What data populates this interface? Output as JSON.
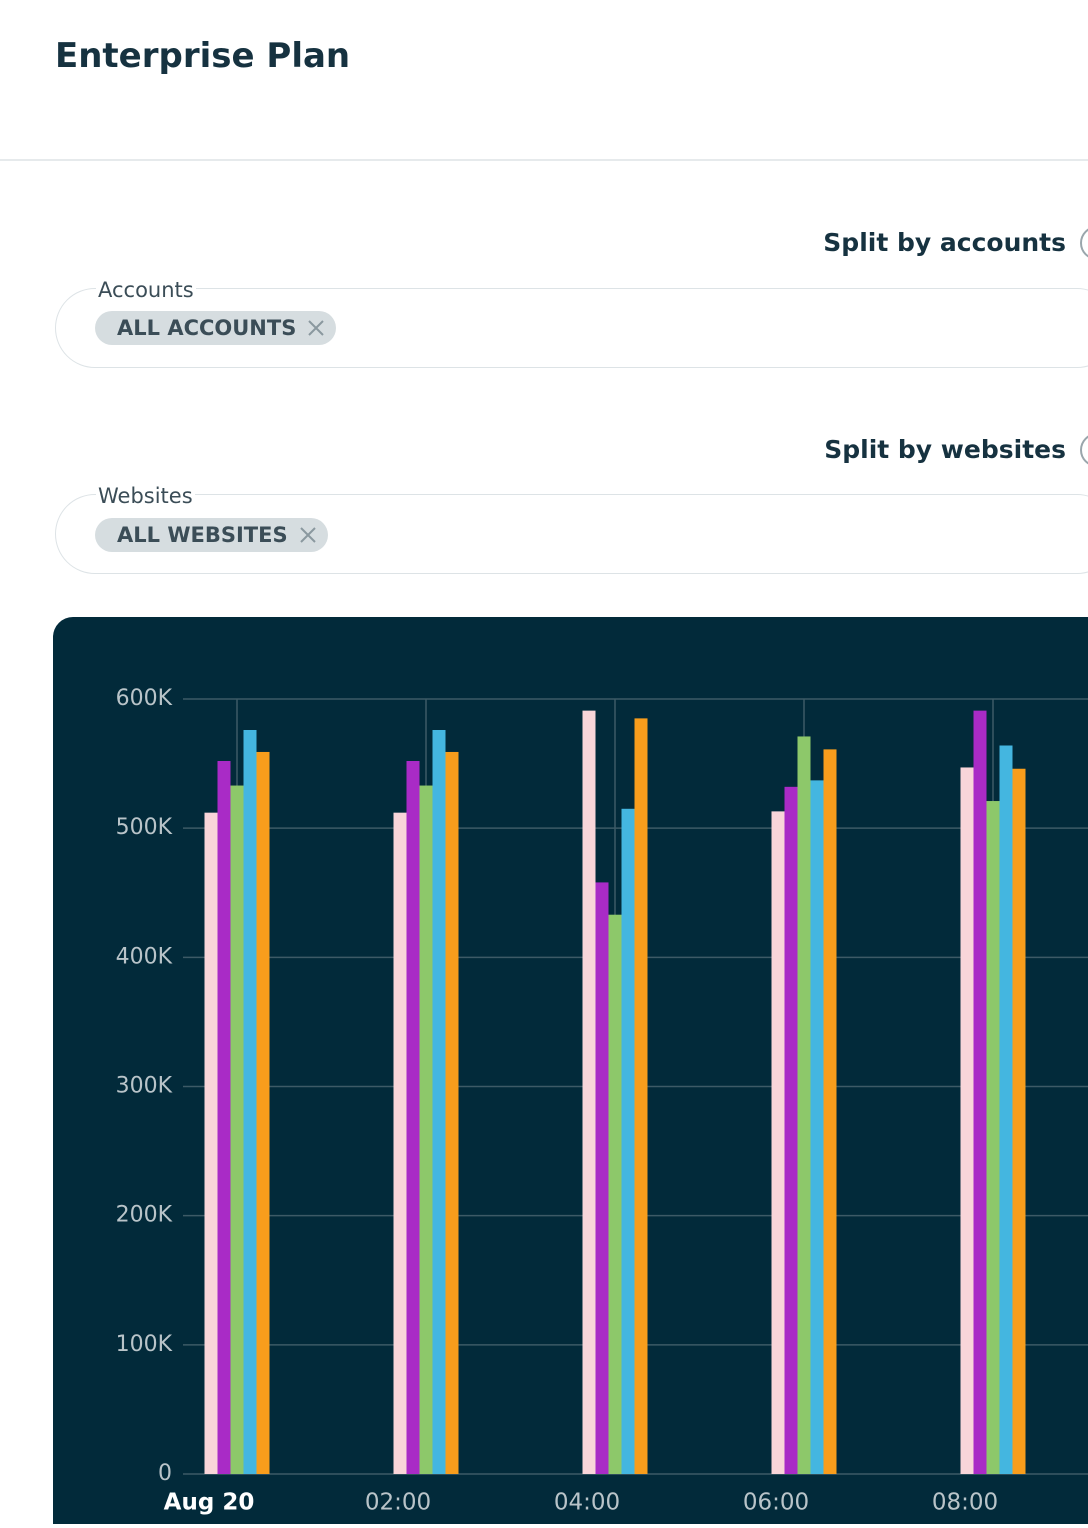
{
  "header": {
    "title": "Enterprise Plan"
  },
  "filters": [
    {
      "toggle_label": "Split by accounts",
      "field_label": "Accounts",
      "chip": "ALL ACCOUNTS"
    },
    {
      "toggle_label": "Split by websites",
      "field_label": "Websites",
      "chip": "ALL WEBSITES"
    }
  ],
  "chart_data": {
    "type": "bar",
    "categories": [
      "Aug 20",
      "02:00",
      "04:00",
      "06:00",
      "08:00"
    ],
    "series": [
      {
        "color": "#f9d5d9",
        "values": [
          512000,
          512000,
          591000,
          513000,
          547000
        ]
      },
      {
        "color": "#a92bc6",
        "values": [
          552000,
          552000,
          458000,
          532000,
          591000
        ]
      },
      {
        "color": "#8dc86a",
        "values": [
          533000,
          533000,
          433000,
          571000,
          521000
        ]
      },
      {
        "color": "#44b6e0",
        "values": [
          576000,
          576000,
          515000,
          537000,
          564000
        ]
      },
      {
        "color": "#f89d1c",
        "values": [
          559000,
          559000,
          585000,
          561000,
          546000
        ]
      }
    ],
    "ylim": [
      0,
      600000
    ],
    "yticks": [
      0,
      {
        "value": 100000,
        "label": "100K"
      },
      {
        "value": 200000,
        "label": "200K"
      },
      {
        "value": 300000,
        "label": "300K"
      },
      {
        "value": 400000,
        "label": "400K"
      },
      {
        "value": 500000,
        "label": "500K"
      },
      {
        "value": 600000,
        "label": "600K"
      }
    ],
    "grid": true
  }
}
